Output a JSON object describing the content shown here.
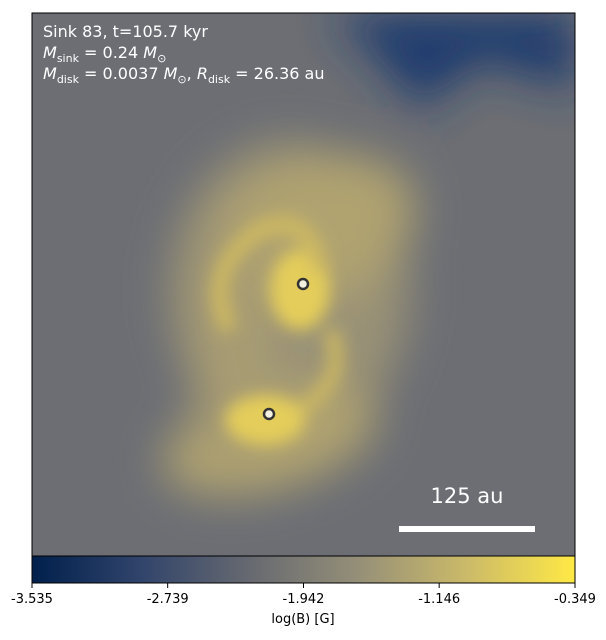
{
  "chart_data": {
    "type": "heatmap",
    "annotations": [
      [
        {
          "text": "Sink 83, t=105.7 kyr"
        }
      ],
      [
        {
          "text": "M",
          "italic": true
        },
        {
          "text": "sink",
          "sub": true
        },
        {
          "text": " = 0.24 "
        },
        {
          "text": "M",
          "italic": true
        },
        {
          "text": "⊙",
          "sub": true
        }
      ],
      [
        {
          "text": "M",
          "italic": true
        },
        {
          "text": "disk",
          "sub": true
        },
        {
          "text": " = 0.0037 "
        },
        {
          "text": "M",
          "italic": true
        },
        {
          "text": "⊙",
          "sub": true
        },
        {
          "text": ", "
        },
        {
          "text": "R",
          "italic": true
        },
        {
          "text": "disk",
          "sub": true
        },
        {
          "text": " = 26.36 au"
        }
      ]
    ],
    "scale_bar_label": "125 au",
    "colorbar": {
      "label": "log(B) [G]",
      "lim": [
        -3.535,
        -0.349
      ],
      "ticks": [
        -3.535,
        -2.739,
        -1.942,
        -1.146,
        -0.349
      ],
      "colormap": [
        "#00204c",
        "#31446b",
        "#666970",
        "#958f78",
        "#cbba69",
        "#ffe945"
      ]
    }
  }
}
